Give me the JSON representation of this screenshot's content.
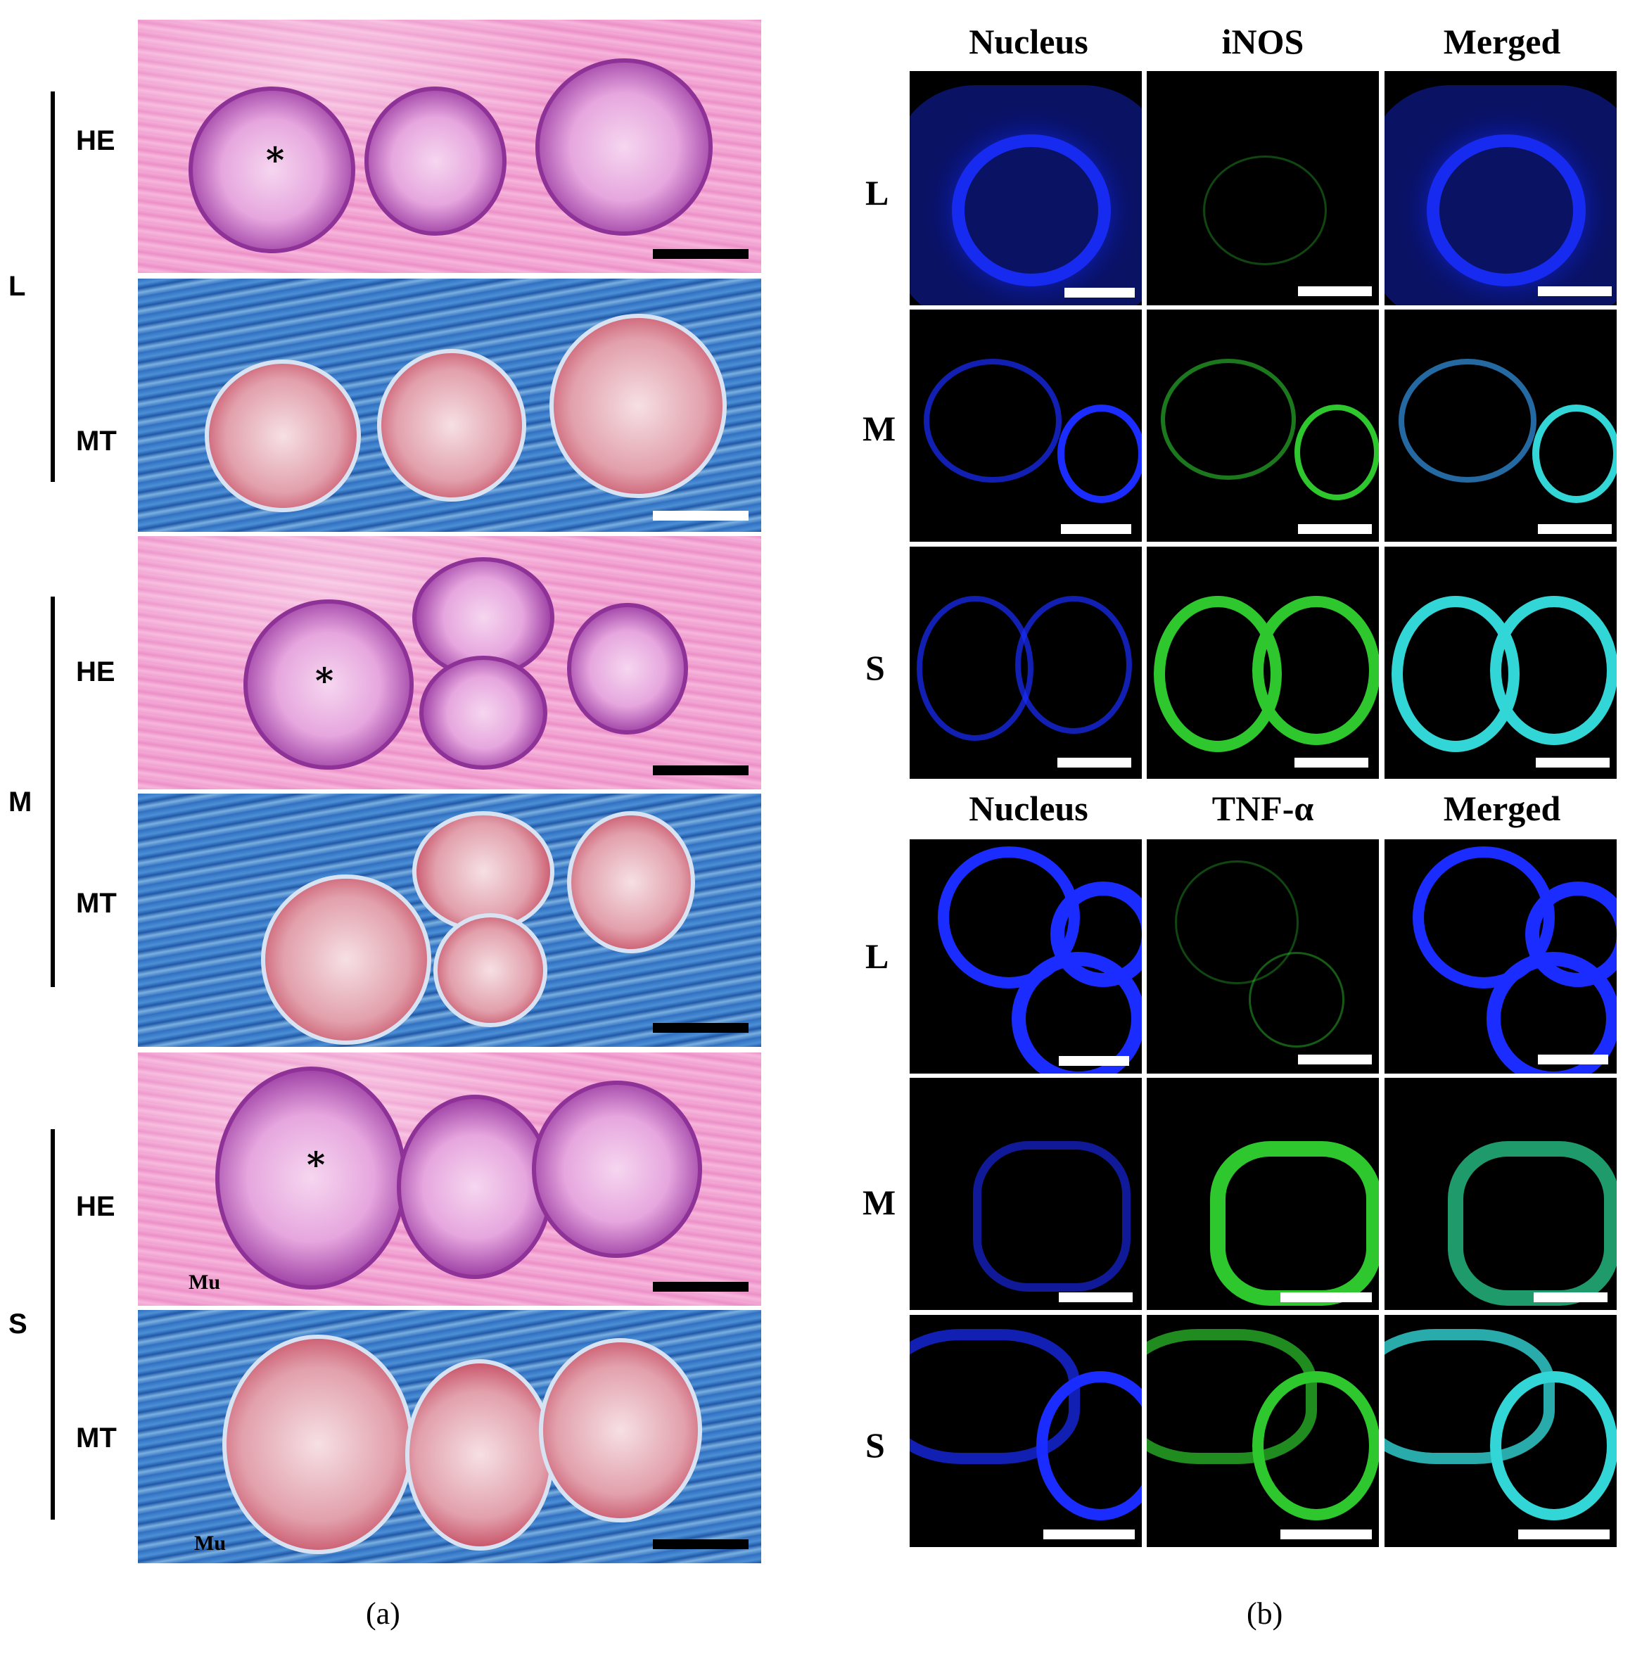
{
  "panel_a": {
    "groups": [
      {
        "label": "L",
        "rows": [
          "HE",
          "MT"
        ]
      },
      {
        "label": "M",
        "rows": [
          "HE",
          "MT"
        ]
      },
      {
        "label": "S",
        "rows": [
          "HE",
          "MT"
        ]
      }
    ],
    "markers": {
      "asterisk": "*",
      "muscle": "Mu"
    },
    "caption": "(a)"
  },
  "panel_b": {
    "block1": {
      "columns": [
        "Nucleus",
        "iNOS",
        "Merged"
      ],
      "rows": [
        "L",
        "M",
        "S"
      ]
    },
    "block2": {
      "columns": [
        "Nucleus",
        "TNF-α",
        "Merged"
      ],
      "rows": [
        "L",
        "M",
        "S"
      ]
    },
    "caption": "(b)"
  },
  "colors": {
    "nucleus": "#1a2cff",
    "marker": "#2ec82e",
    "merged": "#33d6d6",
    "he": "#f0a0d0",
    "mt": "#2f6fc0"
  }
}
